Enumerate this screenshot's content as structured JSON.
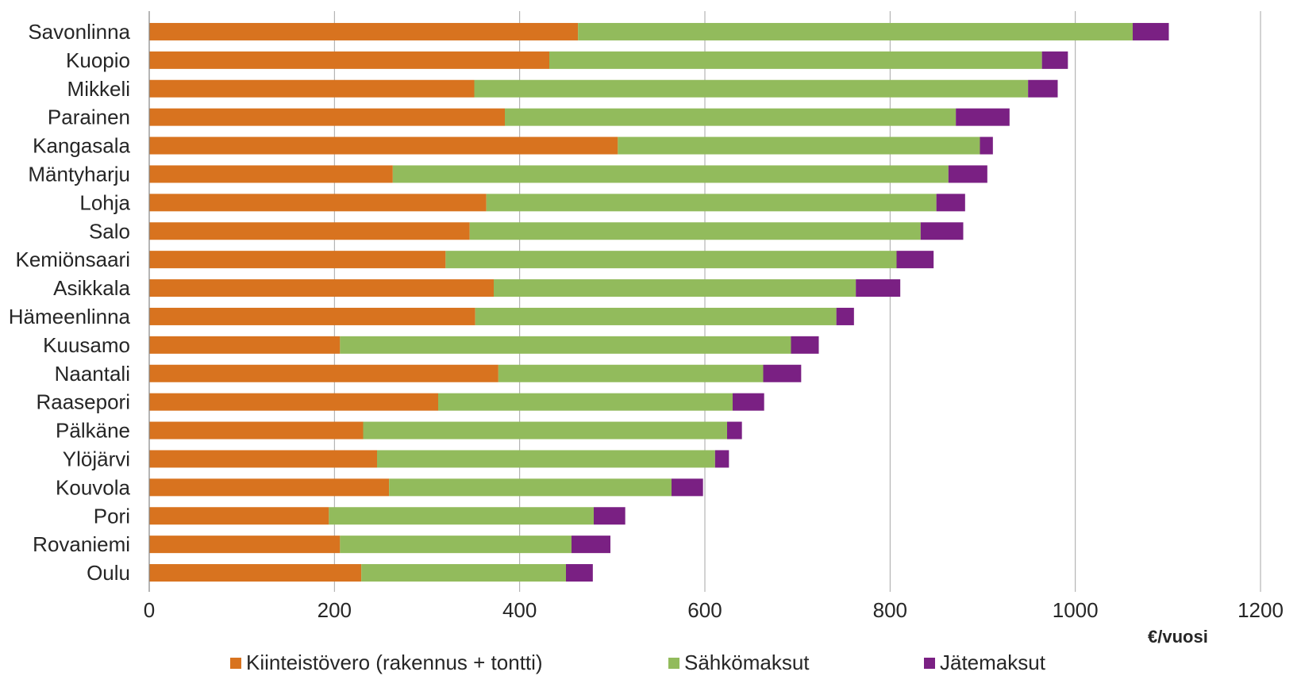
{
  "chart_data": {
    "type": "bar",
    "orientation": "horizontal",
    "stacked": true,
    "categories": [
      "Savonlinna",
      "Kuopio",
      "Mikkeli",
      "Parainen",
      "Kangasala",
      "Mäntyharju",
      "Lohja",
      "Salo",
      "Kemiönsaari",
      "Asikkala",
      "Hämeenlinna",
      "Kuusamo",
      "Naantali",
      "Raasepori",
      "Pälkäne",
      "Ylöjärvi",
      "Kouvola",
      "Pori",
      "Rovaniemi",
      "Oulu"
    ],
    "series": [
      {
        "name": "Kiinteistövero (rakennus + tontti)",
        "color": "#d8731f",
        "values": [
          463,
          432,
          351,
          384,
          506,
          263,
          364,
          346,
          320,
          372,
          352,
          206,
          377,
          312,
          231,
          246,
          259,
          194,
          206,
          229
        ]
      },
      {
        "name": "Sähkömaksut",
        "color": "#92bb5c",
        "values": [
          599,
          532,
          598,
          487,
          391,
          600,
          486,
          487,
          487,
          391,
          390,
          487,
          286,
          318,
          393,
          365,
          305,
          286,
          250,
          221
        ]
      },
      {
        "name": "Jätemaksut",
        "color": "#7a2083",
        "values": [
          39,
          28,
          32,
          58,
          14,
          42,
          31,
          46,
          40,
          48,
          19,
          30,
          41,
          34,
          16,
          15,
          34,
          34,
          42,
          29
        ]
      }
    ],
    "xlim": [
      0,
      1200
    ],
    "xticks": [
      "0",
      "200",
      "400",
      "600",
      "800",
      "1000",
      "1200"
    ],
    "xlabel": "€/vuosi",
    "grid": true,
    "legend_position": "bottom"
  }
}
